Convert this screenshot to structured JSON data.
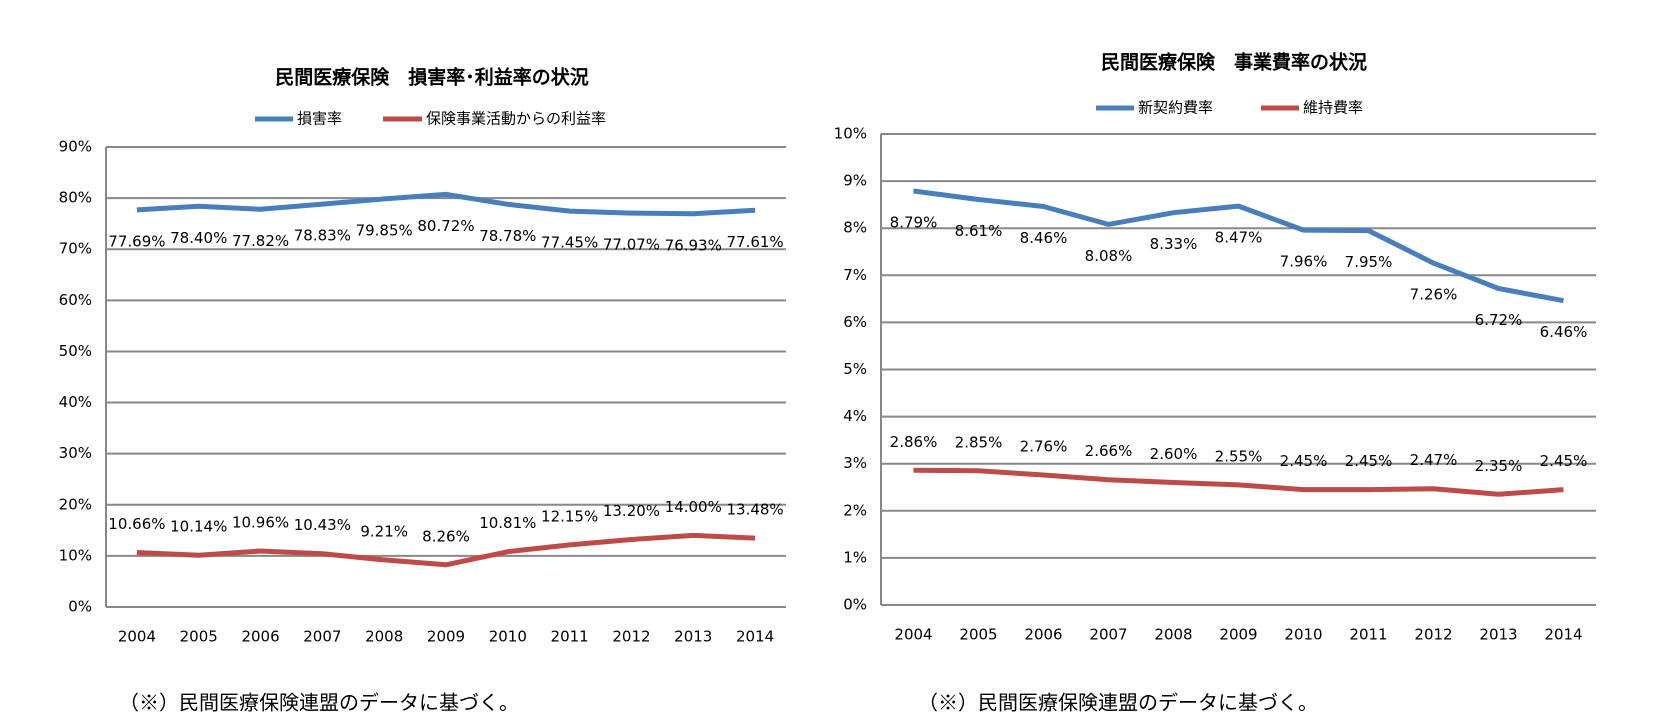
{
  "chart_data": [
    {
      "type": "line",
      "title": "民間医療保険　損害率･利益率の状況",
      "categories": [
        "2004",
        "2005",
        "2006",
        "2007",
        "2008",
        "2009",
        "2010",
        "2011",
        "2012",
        "2013",
        "2014"
      ],
      "series": [
        {
          "name": "損害率",
          "color": "#4a7ebb",
          "values": [
            77.69,
            78.4,
            77.82,
            78.83,
            79.85,
            80.72,
            78.78,
            77.45,
            77.07,
            76.93,
            77.61
          ],
          "value_labels": [
            "77.69%",
            "78.40%",
            "77.82%",
            "78.83%",
            "79.85%",
            "80.72%",
            "78.78%",
            "77.45%",
            "77.07%",
            "76.93%",
            "77.61%"
          ]
        },
        {
          "name": "保険事業活動からの利益率",
          "color": "#be4b48",
          "values": [
            10.66,
            10.14,
            10.96,
            10.43,
            9.21,
            8.26,
            10.81,
            12.15,
            13.2,
            14.0,
            13.48
          ],
          "value_labels": [
            "10.66%",
            "10.14%",
            "10.96%",
            "10.43%",
            "9.21%",
            "8.26%",
            "10.81%",
            "12.15%",
            "13.20%",
            "14.00%",
            "13.48%"
          ]
        }
      ],
      "ylim": [
        0,
        90
      ],
      "yticks": [
        {
          "value": 0,
          "label": "0%"
        },
        {
          "value": 10,
          "label": "10%"
        },
        {
          "value": 20,
          "label": "20%"
        },
        {
          "value": 30,
          "label": "30%"
        },
        {
          "value": 40,
          "label": "40%"
        },
        {
          "value": 50,
          "label": "50%"
        },
        {
          "value": 60,
          "label": "60%"
        },
        {
          "value": 70,
          "label": "70%"
        },
        {
          "value": 80,
          "label": "80%"
        },
        {
          "value": 90,
          "label": "90%"
        }
      ],
      "grid": true,
      "legend": "top",
      "note": "（※）民間医療保険連盟のデータに基づく。"
    },
    {
      "type": "line",
      "title": "民間医療保険　事業費率の状況",
      "categories": [
        "2004",
        "2005",
        "2006",
        "2007",
        "2008",
        "2009",
        "2010",
        "2011",
        "2012",
        "2013",
        "2014"
      ],
      "series": [
        {
          "name": "新契約費率",
          "color": "#4a7ebb",
          "values": [
            8.79,
            8.61,
            8.46,
            8.08,
            8.33,
            8.47,
            7.96,
            7.95,
            7.26,
            6.72,
            6.46
          ],
          "value_labels": [
            "8.79%",
            "8.61%",
            "8.46%",
            "8.08%",
            "8.33%",
            "8.47%",
            "7.96%",
            "7.95%",
            "7.26%",
            "6.72%",
            "6.46%"
          ]
        },
        {
          "name": "維持費率",
          "color": "#be4b48",
          "values": [
            2.86,
            2.85,
            2.76,
            2.66,
            2.6,
            2.55,
            2.45,
            2.45,
            2.47,
            2.35,
            2.45
          ],
          "value_labels": [
            "2.86%",
            "2.85%",
            "2.76%",
            "2.66%",
            "2.60%",
            "2.55%",
            "2.45%",
            "2.45%",
            "2.47%",
            "2.35%",
            "2.45%"
          ]
        }
      ],
      "ylim": [
        0,
        10
      ],
      "yticks": [
        {
          "value": 0,
          "label": "0%"
        },
        {
          "value": 1,
          "label": "1%"
        },
        {
          "value": 2,
          "label": "2%"
        },
        {
          "value": 3,
          "label": "3%"
        },
        {
          "value": 4,
          "label": "4%"
        },
        {
          "value": 5,
          "label": "5%"
        },
        {
          "value": 6,
          "label": "6%"
        },
        {
          "value": 7,
          "label": "7%"
        },
        {
          "value": 8,
          "label": "8%"
        },
        {
          "value": 9,
          "label": "9%"
        },
        {
          "value": 10,
          "label": "10%"
        }
      ],
      "grid": true,
      "legend": "top",
      "note": "（※）民間医療保険連盟のデータに基づく。"
    }
  ]
}
